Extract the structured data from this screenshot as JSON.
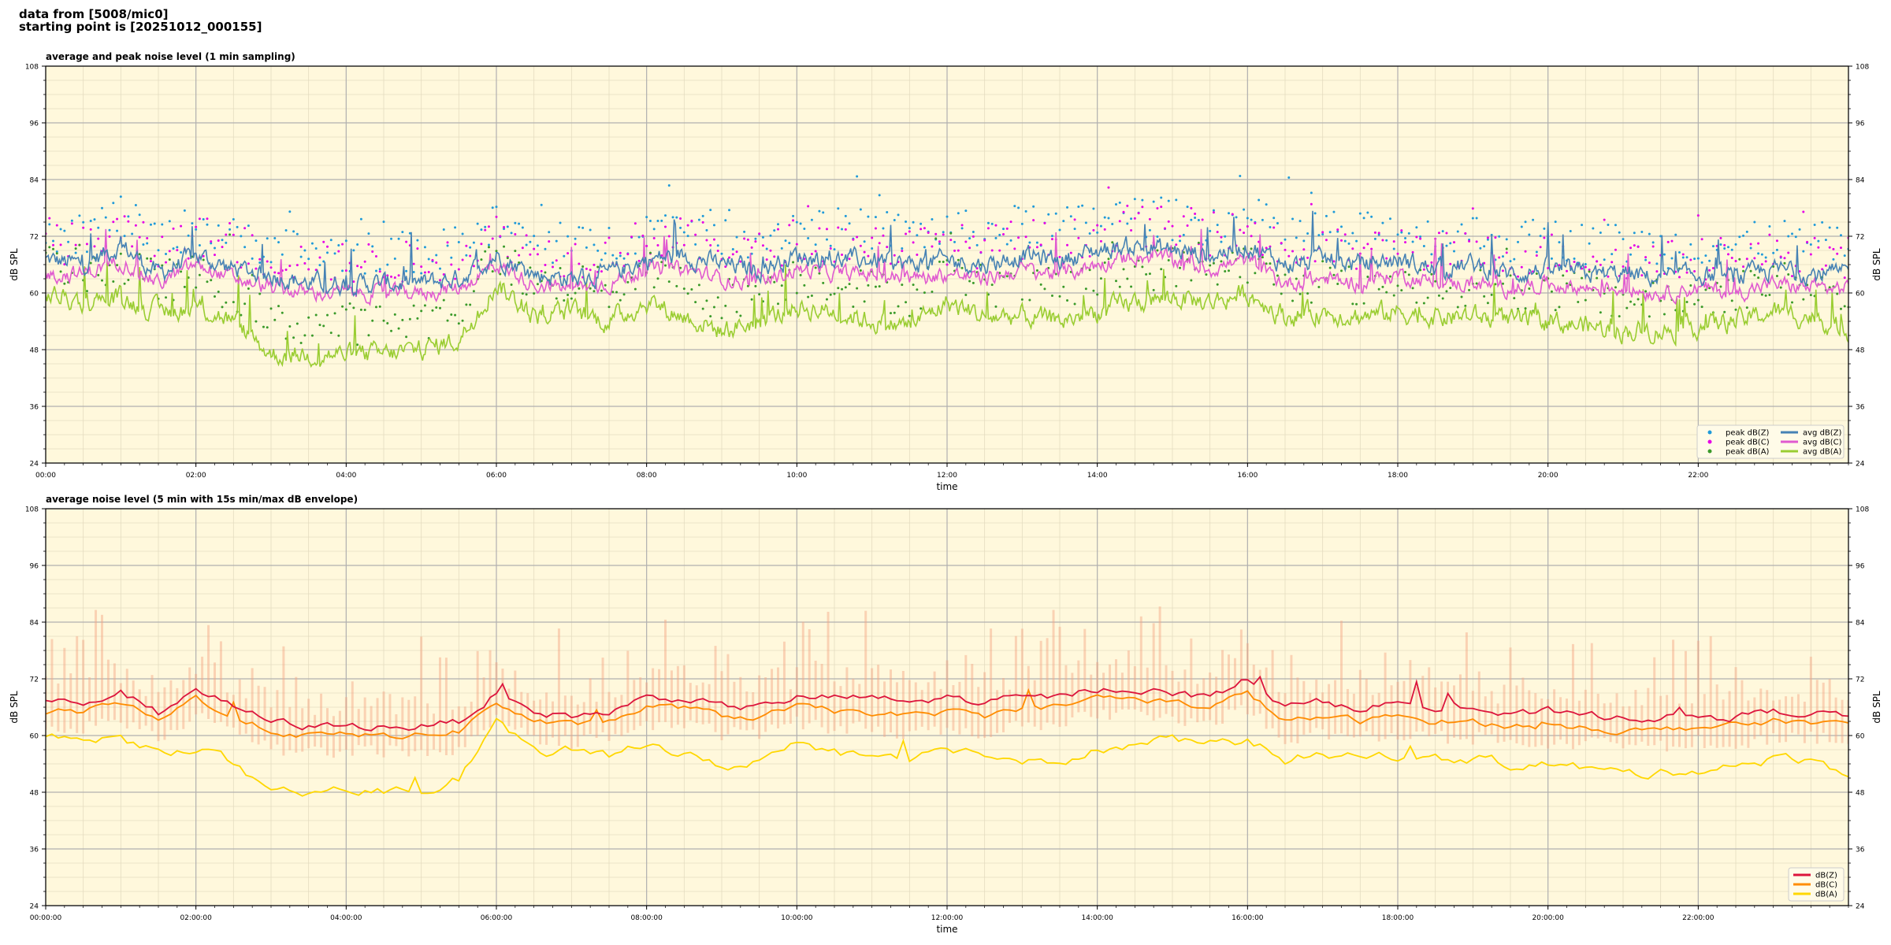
{
  "header": {
    "line1": "data from [5008/mic0]",
    "line2": "starting point is [20251012_000155]"
  },
  "colors": {
    "plot_bg": "#fff8dc",
    "peak_z": "#1f9ad9",
    "peak_c": "#e600e6",
    "peak_a": "#3a9a2a",
    "avg_z": "#4682b4",
    "avg_c": "#e05ad0",
    "avg_a": "#9acd32",
    "db_z": "#dc143c",
    "db_c": "#ff8c00",
    "db_a": "#ffd700",
    "envelope": "#f4a582"
  },
  "chart_data": [
    {
      "type": "line",
      "title": "average and peak noise level (1 min sampling)",
      "xlabel": "time",
      "ylabel": "dB SPL",
      "ylim": [
        24,
        108
      ],
      "xlim_hours": [
        0,
        24
      ],
      "y_ticks": [
        "24",
        "36",
        "48",
        "60",
        "72",
        "84",
        "96",
        "108"
      ],
      "x_ticks": [
        "00:00",
        "02:00",
        "04:00",
        "06:00",
        "08:00",
        "10:00",
        "12:00",
        "14:00",
        "16:00",
        "18:00",
        "20:00",
        "22:00"
      ],
      "grid": true,
      "legend_position": "lower-right",
      "legend": [
        "peak dB(Z)",
        "peak dB(C)",
        "peak dB(A)",
        "avg dB(Z)",
        "avg dB(C)",
        "avg dB(A)"
      ],
      "series": [
        {
          "name": "avg dB(Z)",
          "x_hours": [
            0,
            0.5,
            1,
            1.5,
            2,
            2.5,
            3,
            3.5,
            4,
            4.5,
            5,
            5.5,
            6,
            6.5,
            7,
            7.5,
            8,
            8.5,
            9,
            9.5,
            10,
            10.5,
            11,
            11.5,
            12,
            12.5,
            13,
            13.5,
            14,
            14.5,
            15,
            15.5,
            16,
            16.5,
            17,
            17.5,
            18,
            18.5,
            19,
            19.5,
            20,
            20.5,
            21,
            21.5,
            22,
            22.5,
            23,
            23.5,
            24
          ],
          "values": [
            67,
            66,
            70,
            64,
            68,
            65,
            64,
            62,
            62,
            62,
            62,
            63,
            68,
            64,
            63,
            64,
            67,
            68,
            66,
            65,
            68,
            67,
            67,
            66,
            67,
            66,
            68,
            67,
            69,
            70,
            69,
            68,
            70,
            66,
            67,
            66,
            67,
            65,
            66,
            64,
            65,
            64,
            64,
            63,
            64,
            63,
            65,
            64,
            64
          ]
        },
        {
          "name": "avg dB(C)",
          "x_hours": [
            0,
            0.5,
            1,
            1.5,
            2,
            2.5,
            3,
            3.5,
            4,
            4.5,
            5,
            5.5,
            6,
            6.5,
            7,
            7.5,
            8,
            8.5,
            9,
            9.5,
            10,
            10.5,
            11,
            11.5,
            12,
            12.5,
            13,
            13.5,
            14,
            14.5,
            15,
            15.5,
            16,
            16.5,
            17,
            17.5,
            18,
            18.5,
            19,
            19.5,
            20,
            20.5,
            21,
            21.5,
            22,
            22.5,
            23,
            23.5,
            24
          ],
          "values": [
            64,
            64,
            67,
            62,
            66,
            63,
            61,
            60,
            60,
            60,
            60,
            61,
            66,
            62,
            61,
            62,
            65,
            65,
            63,
            62,
            65,
            64,
            64,
            63,
            64,
            63,
            65,
            64,
            66,
            68,
            67,
            65,
            67,
            62,
            63,
            62,
            64,
            62,
            62,
            61,
            62,
            61,
            61,
            60,
            61,
            60,
            62,
            61,
            61
          ]
        },
        {
          "name": "avg dB(A)",
          "x_hours": [
            0,
            0.5,
            1,
            1.5,
            2,
            2.5,
            3,
            3.5,
            4,
            4.5,
            5,
            5.5,
            6,
            6.5,
            7,
            7.5,
            8,
            8.5,
            9,
            9.5,
            10,
            10.5,
            11,
            11.5,
            12,
            12.5,
            13,
            13.5,
            14,
            14.5,
            15,
            15.5,
            16,
            16.5,
            17,
            17.5,
            18,
            18.5,
            19,
            19.5,
            20,
            20.5,
            21,
            21.5,
            22,
            22.5,
            23,
            23.5,
            24
          ],
          "values": [
            60,
            58,
            59,
            56,
            57,
            54,
            47,
            47,
            47,
            47,
            48,
            50,
            62,
            55,
            56,
            54,
            58,
            55,
            52,
            54,
            57,
            56,
            54,
            53,
            58,
            55,
            55,
            54,
            56,
            58,
            59,
            58,
            60,
            55,
            56,
            55,
            56,
            55,
            55,
            54,
            54,
            53,
            52,
            52,
            53,
            54,
            56,
            55,
            52
          ]
        }
      ]
    },
    {
      "type": "line",
      "title": "average noise level (5 min with 15s min/max dB envelope)",
      "xlabel": "time",
      "ylabel": "dB SPL",
      "ylim": [
        24,
        108
      ],
      "xlim_hours": [
        0,
        24
      ],
      "y_ticks": [
        "24",
        "36",
        "48",
        "60",
        "72",
        "84",
        "96",
        "108"
      ],
      "x_ticks": [
        "00:00:00",
        "02:00:00",
        "04:00:00",
        "06:00:00",
        "08:00:00",
        "10:00:00",
        "12:00:00",
        "14:00:00",
        "16:00:00",
        "18:00:00",
        "20:00:00",
        "22:00:00"
      ],
      "grid": true,
      "legend_position": "lower-right",
      "legend": [
        "dB(Z)",
        "dB(C)",
        "dB(A)"
      ],
      "series": [
        {
          "name": "dB(Z)",
          "x_hours": [
            0,
            0.5,
            1,
            1.5,
            2,
            2.5,
            3,
            3.5,
            4,
            4.5,
            5,
            5.5,
            6,
            6.5,
            7,
            7.5,
            8,
            8.5,
            9,
            9.5,
            10,
            10.5,
            11,
            11.5,
            12,
            12.5,
            13,
            13.5,
            14,
            14.5,
            15,
            15.5,
            16,
            16.5,
            17,
            17.5,
            18,
            18.5,
            19,
            19.5,
            20,
            20.5,
            21,
            21.5,
            22,
            22.5,
            23,
            23.5,
            24
          ],
          "values": [
            67,
            67,
            69,
            65,
            70,
            66,
            63,
            62,
            62,
            62,
            62,
            63,
            69,
            65,
            64,
            65,
            68,
            68,
            66,
            66,
            68,
            68,
            68,
            67,
            68,
            67,
            68,
            68,
            70,
            70,
            69,
            68,
            72,
            66,
            67,
            66,
            67,
            66,
            66,
            64,
            65,
            64,
            64,
            64,
            64,
            64,
            65,
            65,
            64
          ]
        },
        {
          "name": "dB(C)",
          "x_hours": [
            0,
            0.5,
            1,
            1.5,
            2,
            2.5,
            3,
            3.5,
            4,
            4.5,
            5,
            5.5,
            6,
            6.5,
            7,
            7.5,
            8,
            8.5,
            9,
            9.5,
            10,
            10.5,
            11,
            11.5,
            12,
            12.5,
            13,
            13.5,
            14,
            14.5,
            15,
            15.5,
            16,
            16.5,
            17,
            17.5,
            18,
            18.5,
            19,
            19.5,
            20,
            20.5,
            21,
            21.5,
            22,
            22.5,
            23,
            23.5,
            24
          ],
          "values": [
            65,
            65,
            67,
            63,
            68,
            64,
            61,
            60,
            60,
            60,
            60,
            61,
            67,
            63,
            62,
            63,
            66,
            66,
            64,
            64,
            66,
            65,
            65,
            64,
            65,
            64,
            66,
            66,
            68,
            68,
            67,
            66,
            69,
            63,
            64,
            63,
            64,
            63,
            63,
            62,
            62,
            62,
            61,
            61,
            62,
            62,
            63,
            63,
            62
          ]
        },
        {
          "name": "dB(A)",
          "x_hours": [
            0,
            0.5,
            1,
            1.5,
            2,
            2.5,
            3,
            3.5,
            4,
            4.5,
            5,
            5.5,
            6,
            6.5,
            7,
            7.5,
            8,
            8.5,
            9,
            9.5,
            10,
            10.5,
            11,
            11.5,
            12,
            12.5,
            13,
            13.5,
            14,
            14.5,
            15,
            15.5,
            16,
            16.5,
            17,
            17.5,
            18,
            18.5,
            19,
            19.5,
            20,
            20.5,
            21,
            21.5,
            22,
            22.5,
            23,
            23.5,
            24
          ],
          "values": [
            60,
            59,
            59,
            56,
            58,
            54,
            47,
            48,
            48,
            48,
            49,
            51,
            63,
            56,
            57,
            55,
            59,
            56,
            53,
            55,
            58,
            56,
            55,
            54,
            58,
            56,
            55,
            55,
            57,
            58,
            59,
            58,
            59,
            55,
            56,
            55,
            56,
            55,
            55,
            54,
            54,
            53,
            52,
            52,
            53,
            54,
            55,
            55,
            52
          ]
        }
      ]
    }
  ]
}
